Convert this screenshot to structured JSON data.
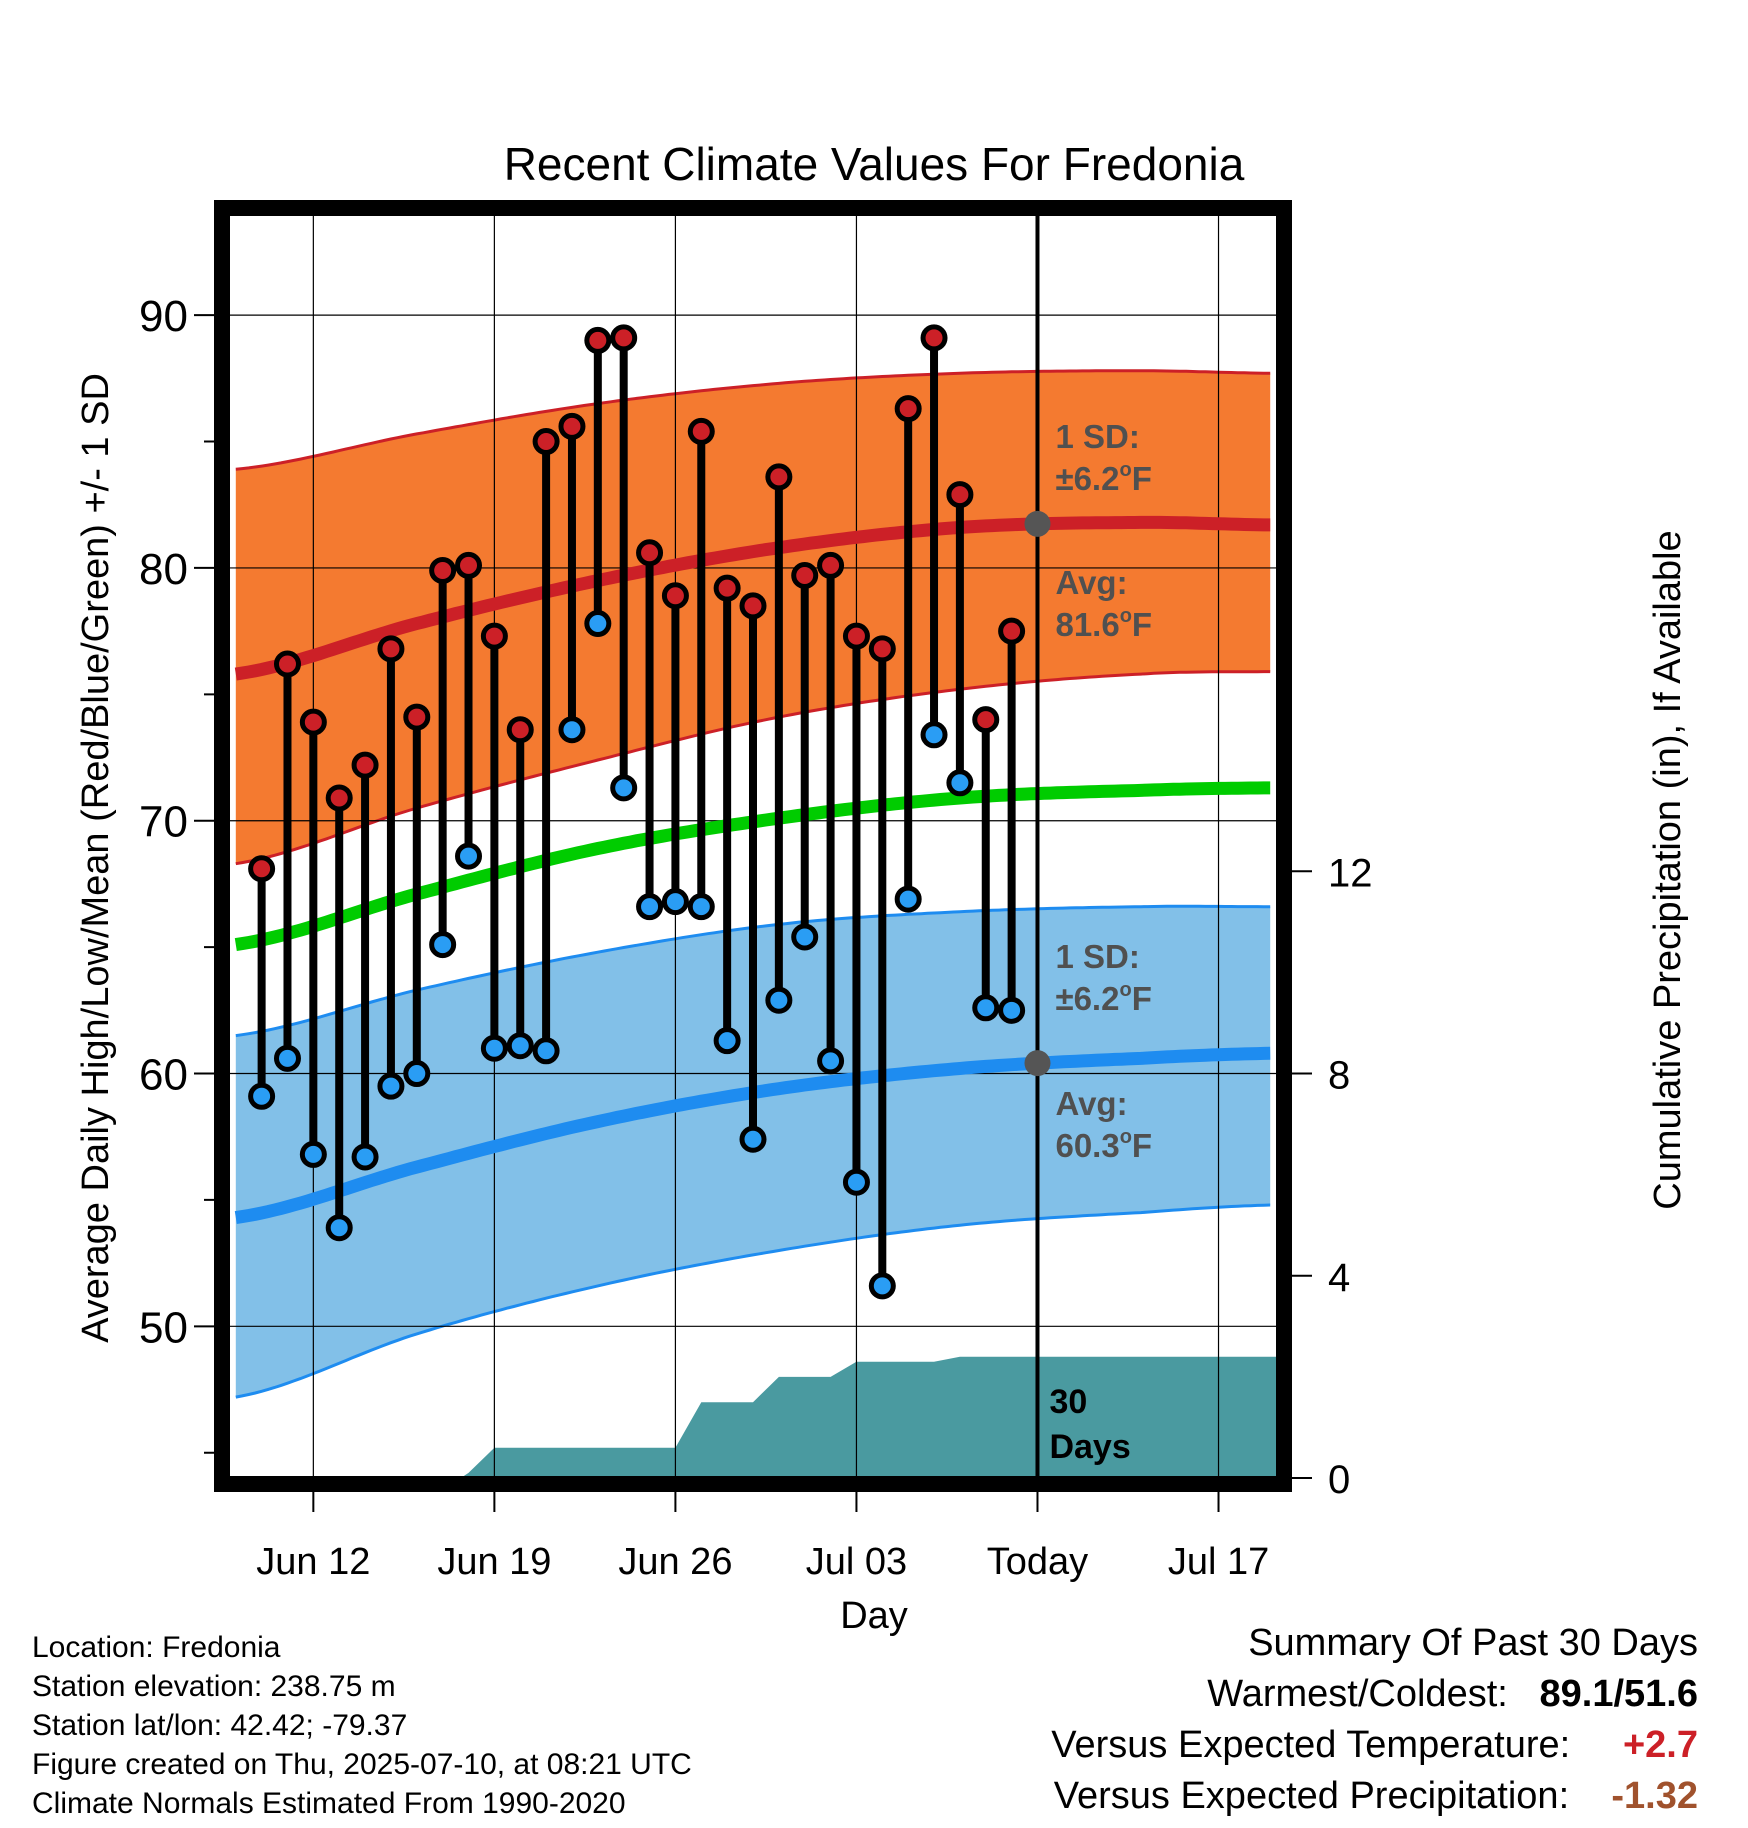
{
  "chart_data": {
    "type": "line",
    "title": "Recent Climate Values For Fredonia",
    "xlabel": "Day",
    "ylabel": "Average Daily High/Low/Mean (Red/Blue/Green) +/- 1 SD",
    "y2label": "Cumulative Precipitation (in), If Available",
    "ylim": [
      44,
      94
    ],
    "y2lim": [
      0,
      25
    ],
    "y_ticks": [
      50,
      60,
      70,
      80,
      90
    ],
    "y2_ticks": [
      0,
      4,
      8,
      12
    ],
    "x_ticks": [
      {
        "day": 2,
        "label": "Jun 12"
      },
      {
        "day": 9,
        "label": "Jun 19"
      },
      {
        "day": 16,
        "label": "Jun 26"
      },
      {
        "day": 23,
        "label": "Jul 03"
      },
      {
        "day": 30,
        "label": "Today"
      },
      {
        "day": 37,
        "label": "Jul 17"
      }
    ],
    "x_range": [
      -1.3,
      39.3
    ],
    "grid": true,
    "today_day": 30,
    "colors": {
      "high_band": "#f47a30",
      "high_line": "#cc2027",
      "low_band": "#82c0e8",
      "low_line": "#1e8cf0",
      "mean_line": "#00cc00",
      "precip": "#4a9aa0",
      "high_marker": "#cc2027",
      "low_marker": "#2a9df4",
      "annotation": "#505050",
      "temp_anomaly": "#cc2027",
      "precip_anomaly": "#a0522d"
    },
    "normals": {
      "days": [
        -1,
        6,
        13,
        20,
        27,
        34,
        39
      ],
      "high_avg": [
        75.8,
        77.8,
        79.5,
        80.8,
        81.6,
        81.8,
        81.7
      ],
      "high_upper": [
        83.9,
        85.3,
        86.5,
        87.3,
        87.7,
        87.8,
        87.7
      ],
      "high_lower": [
        68.3,
        70.5,
        72.4,
        74.1,
        75.2,
        75.8,
        75.9
      ],
      "low_avg": [
        54.3,
        56.3,
        58.1,
        59.4,
        60.2,
        60.6,
        60.8
      ],
      "low_upper": [
        61.5,
        63.3,
        64.8,
        65.9,
        66.4,
        66.6,
        66.6
      ],
      "low_lower": [
        47.2,
        49.7,
        51.6,
        53.0,
        54.0,
        54.5,
        54.8
      ],
      "mean": [
        65.1,
        67.1,
        68.9,
        70.1,
        70.9,
        71.2,
        71.3
      ]
    },
    "series": [
      {
        "name": "High",
        "days": [
          0,
          1,
          2,
          3,
          4,
          5,
          6,
          7,
          8,
          9,
          10,
          11,
          12,
          13,
          14,
          15,
          16,
          17,
          18,
          19,
          20,
          21,
          22,
          23,
          24,
          25,
          26,
          27,
          28,
          29
        ],
        "values": [
          68.1,
          76.2,
          73.9,
          70.9,
          72.2,
          76.8,
          74.1,
          79.9,
          80.1,
          77.3,
          73.6,
          85.0,
          85.6,
          89.0,
          89.1,
          80.6,
          78.9,
          85.4,
          79.2,
          78.5,
          83.6,
          79.7,
          80.1,
          77.3,
          76.8,
          86.3,
          89.1,
          82.9,
          74.0,
          77.5
        ]
      },
      {
        "name": "Low",
        "days": [
          0,
          1,
          2,
          3,
          4,
          5,
          6,
          7,
          8,
          9,
          10,
          11,
          12,
          13,
          14,
          15,
          16,
          17,
          18,
          19,
          20,
          21,
          22,
          23,
          24,
          25,
          26,
          27,
          28,
          29
        ],
        "values": [
          59.1,
          60.6,
          56.8,
          53.9,
          56.7,
          59.5,
          60.0,
          65.1,
          68.6,
          61.0,
          61.1,
          60.9,
          73.6,
          77.8,
          71.3,
          66.6,
          66.8,
          66.6,
          61.3,
          57.4,
          62.9,
          65.4,
          60.5,
          55.7,
          51.6,
          66.9,
          73.4,
          71.5,
          62.6,
          62.5
        ]
      },
      {
        "name": "Cumulative Precipitation",
        "axis": "y2",
        "x": [
          -1.3,
          7.7,
          8,
          9,
          16,
          17,
          18,
          19,
          20,
          21,
          22,
          23,
          24,
          25,
          26,
          27,
          28,
          29,
          30,
          39.3
        ],
        "values": [
          0,
          0,
          0.1,
          0.6,
          0.6,
          1.5,
          1.5,
          1.5,
          2.0,
          2.0,
          2.0,
          2.3,
          2.3,
          2.3,
          2.3,
          2.4,
          2.4,
          2.4,
          2.4,
          2.4
        ]
      }
    ],
    "annotations": {
      "high_sd_label": "1 SD:",
      "high_sd_value": "±6.2",
      "high_avg_label": "Avg:",
      "high_avg_value": "81.6",
      "low_sd_label": "1 SD:",
      "low_sd_value": "±6.2",
      "low_avg_label": "Avg:",
      "low_avg_value": "60.3",
      "degree_sup": "o",
      "unit": "F",
      "period_line1": "30",
      "period_line2": "Days"
    }
  },
  "info": {
    "location": "Location: Fredonia",
    "elevation": "Station elevation: 238.75 m",
    "latlon": "Station lat/lon: 42.42; -79.37",
    "created": "Figure created on Thu, 2025-07-10, at 08:21 UTC",
    "normals": "Climate Normals Estimated From 1990-2020"
  },
  "summary": {
    "title": "Summary Of Past 30 Days",
    "warm_cold_label": "Warmest/Coldest:",
    "warm_cold_value": "89.1/51.6",
    "temp_label": "Versus Expected Temperature:",
    "temp_value": "+2.7",
    "precip_label": "Versus Expected Precipitation:",
    "precip_value": "-1.32"
  }
}
